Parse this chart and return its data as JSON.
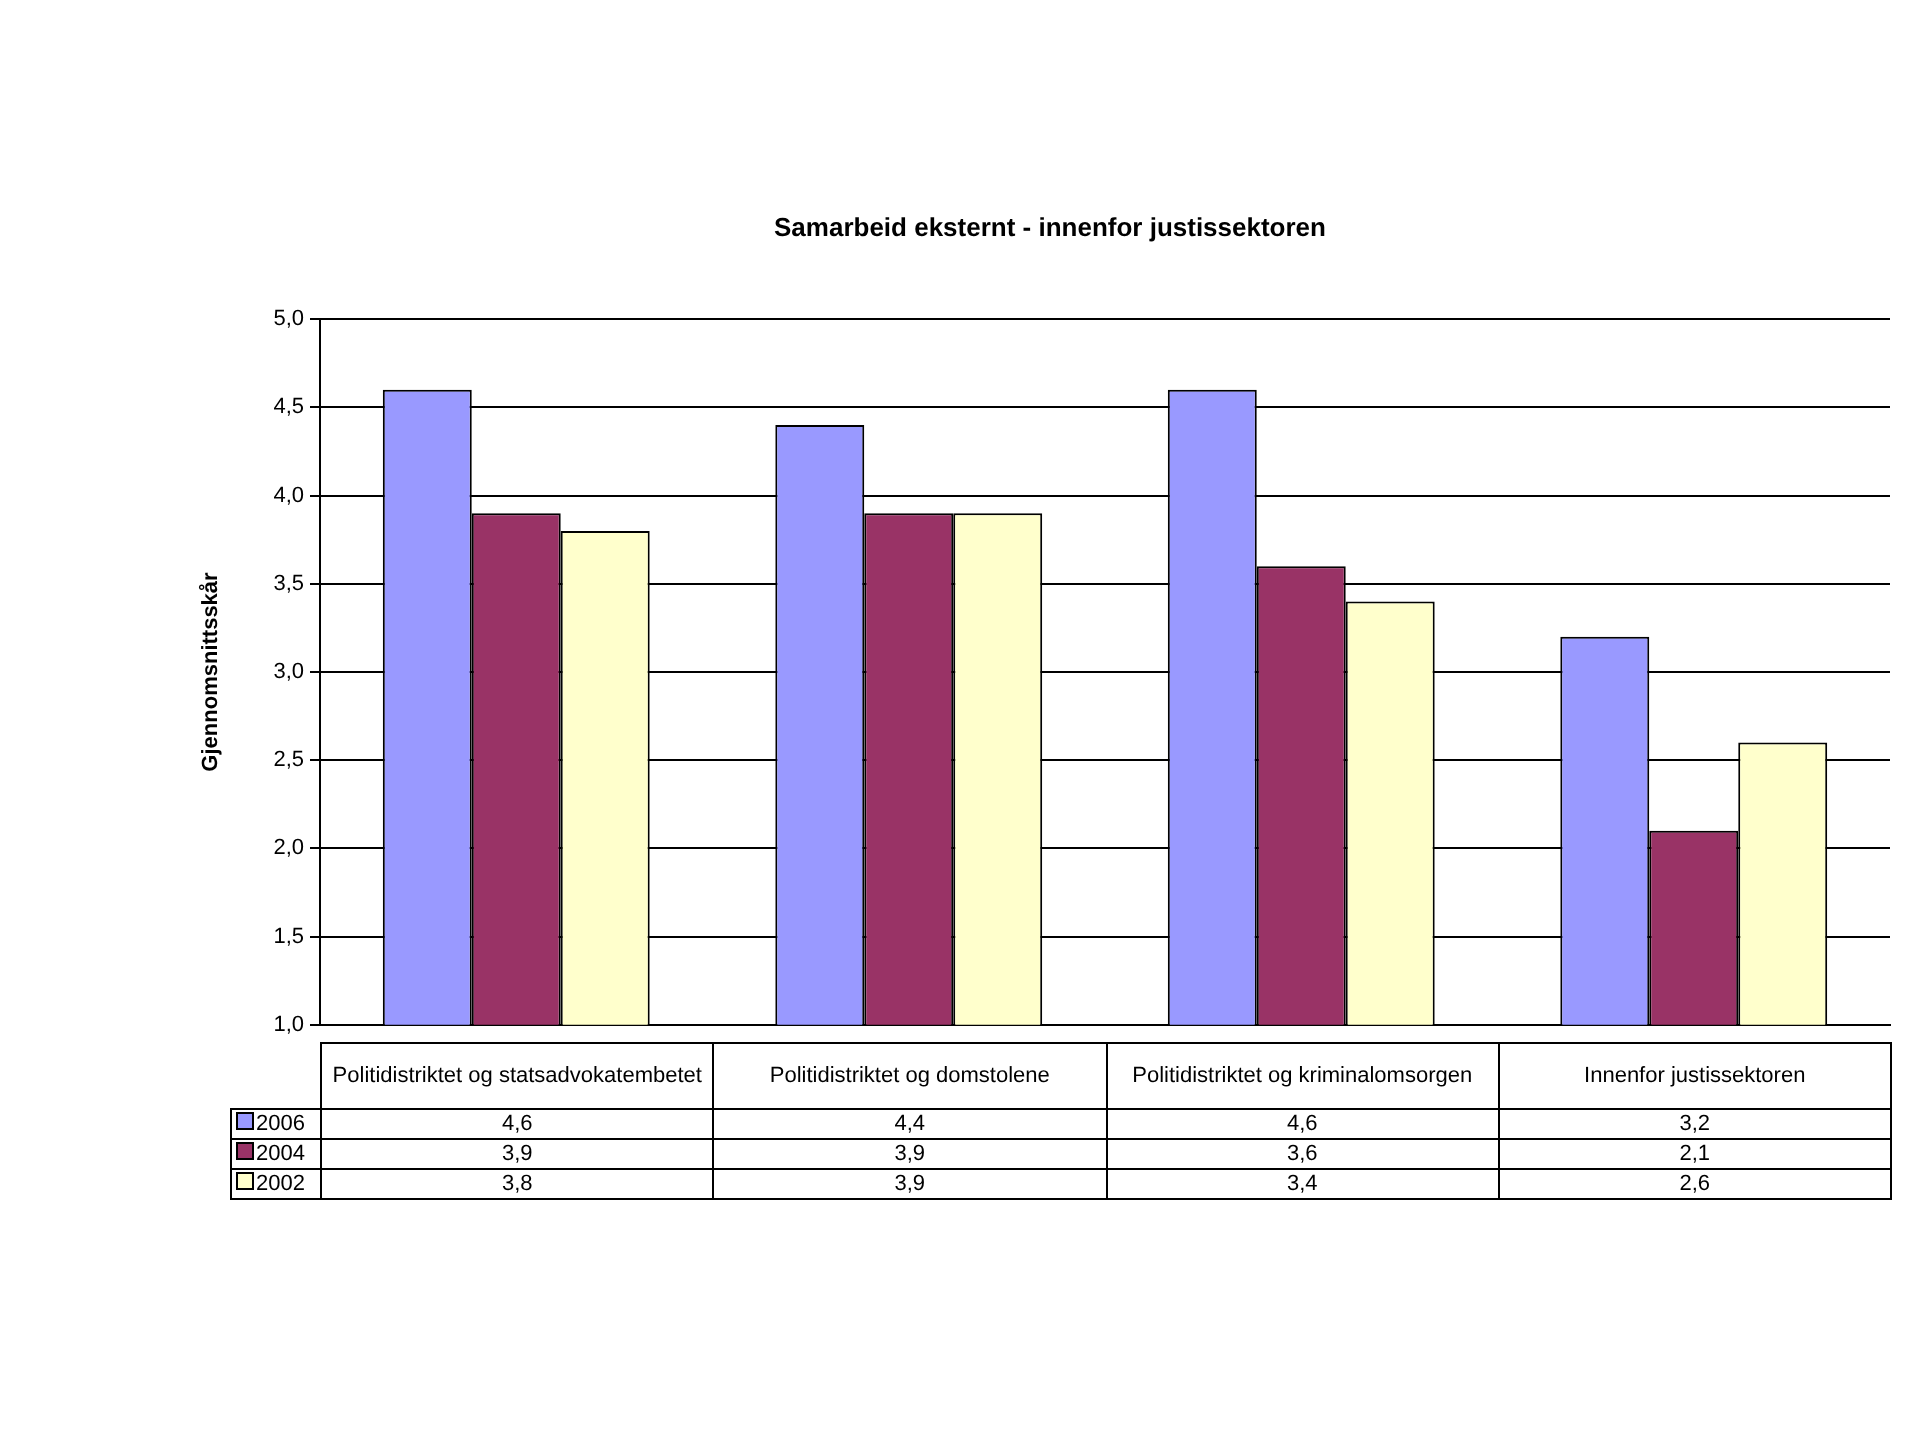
{
  "chart_data": {
    "type": "bar",
    "title": "Samarbeid eksternt - innenfor justissektoren",
    "ylabel": "Gjennomsnittsskår",
    "categories": [
      "Politidistriktet og statsadvokatembetet",
      "Politidistriktet og domstolene",
      "Politidistriktet og kriminalomsorgen",
      "Innenfor justissektoren"
    ],
    "series": [
      {
        "name": "2006",
        "color": "#9999ff",
        "values": [
          4.6,
          4.4,
          4.6,
          3.2
        ],
        "value_labels": [
          "4,6",
          "4,4",
          "4,6",
          "3,2"
        ]
      },
      {
        "name": "2004",
        "color": "#993366",
        "values": [
          3.9,
          3.9,
          3.6,
          2.1
        ],
        "value_labels": [
          "3,9",
          "3,9",
          "3,6",
          "2,1"
        ]
      },
      {
        "name": "2002",
        "color": "#ffffcc",
        "values": [
          3.8,
          3.9,
          3.4,
          2.6
        ],
        "value_labels": [
          "3,8",
          "3,9",
          "3,4",
          "2,6"
        ]
      }
    ],
    "ylim": [
      1,
      5
    ],
    "yticks": [
      {
        "value": 1,
        "label": "1,0"
      },
      {
        "value": 1.5,
        "label": "1,5"
      },
      {
        "value": 2,
        "label": "2,0"
      },
      {
        "value": 2.5,
        "label": "2,5"
      },
      {
        "value": 3,
        "label": "3,0"
      },
      {
        "value": 3.5,
        "label": "3,5"
      },
      {
        "value": 4,
        "label": "4,0"
      },
      {
        "value": 4.5,
        "label": "4,5"
      },
      {
        "value": 5,
        "label": "5,0"
      }
    ],
    "grid": "y",
    "legend": "bottom"
  }
}
